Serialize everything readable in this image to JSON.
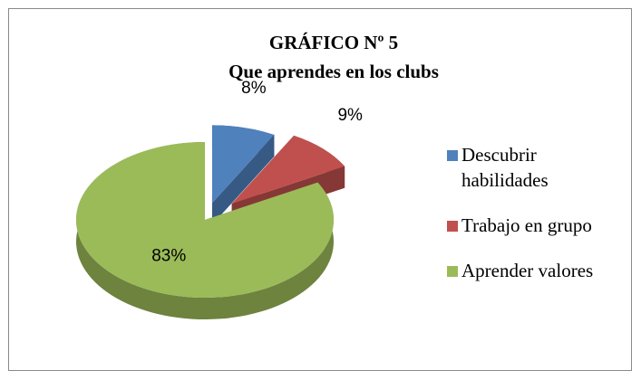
{
  "chart_data": {
    "type": "pie",
    "title": "GRÁFICO Nº 5",
    "subtitle": "Que aprendes en los clubs",
    "categories": [
      "Descubrir habilidades",
      "Trabajo en grupo",
      "Aprender valores"
    ],
    "values": [
      8,
      9,
      83
    ],
    "value_labels": [
      "8%",
      "9%",
      "83%"
    ],
    "colors": [
      "#4f81bd",
      "#c0504d",
      "#9bbb59"
    ],
    "legend": "right"
  }
}
